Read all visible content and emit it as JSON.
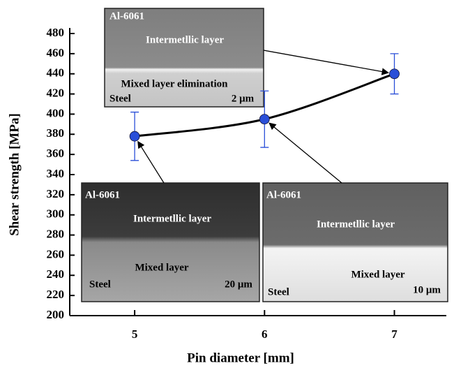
{
  "chart_data": {
    "type": "line",
    "x": [
      5,
      6,
      7
    ],
    "series": [
      {
        "color": "#2a4fd8",
        "values": [
          378,
          395,
          440
        ],
        "errors": [
          24,
          28,
          20
        ]
      }
    ],
    "xlabel": "Pin diameter [mm]",
    "ylabel": "Shear strength [MPa]",
    "xlim": [
      4.5,
      7.4
    ],
    "ylim": [
      200,
      480
    ],
    "xticks": [
      5,
      6,
      7
    ],
    "yticks": [
      200,
      220,
      240,
      260,
      280,
      300,
      320,
      340,
      360,
      380,
      400,
      420,
      440,
      460,
      480
    ]
  },
  "insets": [
    {
      "alloy": "Al-6061",
      "layer": "Intermetllic layer",
      "note": "Mixed layer elimination",
      "base": "Steel",
      "scale": "2 μm"
    },
    {
      "alloy": "Al-6061",
      "layer": "Intermetllic layer",
      "note": "Mixed layer",
      "base": "Steel",
      "scale": "20 μm"
    },
    {
      "alloy": "Al-6061",
      "layer": "Intermetllic layer",
      "note": "Mixed layer",
      "base": "Steel",
      "scale": "10 μm"
    }
  ]
}
